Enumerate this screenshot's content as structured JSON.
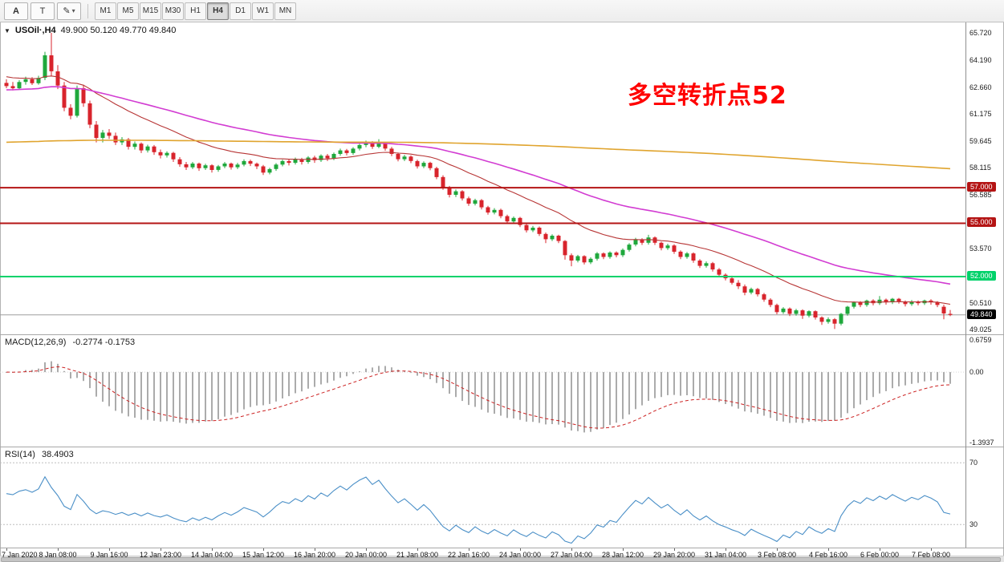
{
  "toolbar": {
    "button_a": "A",
    "button_t": "T",
    "timeframes": [
      "M1",
      "M5",
      "M15",
      "M30",
      "H1",
      "H4",
      "D1",
      "W1",
      "MN"
    ],
    "active_timeframe": "H4"
  },
  "icons": {
    "symbol_dropdown": "▼",
    "chevron_down": "▾",
    "draw": "✎"
  },
  "chart_header": {
    "symbol": "USOil·,H4",
    "ohlc": "49.900 50.120 49.770 49.840"
  },
  "annotation": {
    "text": "多空转折点52",
    "color": "#ff0000"
  },
  "macd_header": {
    "label": "MACD(12,26,9)",
    "values": "-0.2774 -0.1753"
  },
  "rsi_header": {
    "label": "RSI(14)",
    "value": "38.4903"
  },
  "chart_data": {
    "type": "candlestick+indicators",
    "symbol": "USOil",
    "timeframe": "H4",
    "colors": {
      "up": "#1fa83c",
      "down": "#d8242c"
    },
    "main": {
      "ylim": [
        48.75,
        66.3
      ],
      "ticks": [
        {
          "v": 65.72,
          "label": "65.720"
        },
        {
          "v": 64.19,
          "label": "64.190"
        },
        {
          "v": 62.66,
          "label": "62.660"
        },
        {
          "v": 61.175,
          "label": "61.175"
        },
        {
          "v": 59.645,
          "label": "59.645"
        },
        {
          "v": 58.115,
          "label": "58.115"
        },
        {
          "v": 56.585,
          "label": "56.585"
        },
        {
          "v": 53.57,
          "label": "53.570"
        },
        {
          "v": 50.51,
          "label": "50.510"
        },
        {
          "v": 49.025,
          "label": "49.025"
        }
      ]
    },
    "hlines": [
      {
        "value": 57.0,
        "label": "57.000",
        "color": "#b41414",
        "text_color": "#ffffff",
        "width": 2
      },
      {
        "value": 55.0,
        "label": "55.000",
        "color": "#b41414",
        "text_color": "#ffffff",
        "width": 2
      },
      {
        "value": 52.0,
        "label": "52.000",
        "color": "#00d26a",
        "text_color": "#ffffff",
        "width": 2
      }
    ],
    "current_price": {
      "value": 49.84,
      "label": "49.840",
      "color": "#000000",
      "text_color": "#ffffff"
    },
    "moving_averages": [
      {
        "name": "ma-fast",
        "period": 21,
        "seed": 63.3,
        "color": "#b73535",
        "width": 1.1
      },
      {
        "name": "ma-mid",
        "period": 55,
        "seed": 62.5,
        "color": "#d23cd2",
        "width": 1.6
      },
      {
        "name": "ma-slow",
        "period": 700,
        "seed": 59.55,
        "color": "#e0a42e",
        "width": 1.6
      }
    ],
    "macd": {
      "params": [
        12,
        26,
        9
      ],
      "ylim": [
        -1.45,
        0.72
      ],
      "axis_labels": [
        {
          "v": 0.6759,
          "label": "0.6759"
        },
        {
          "v": 0,
          "label": "0.00"
        },
        {
          "v": -1.3937,
          "label": "-1.3937"
        }
      ],
      "histogram_color": "#ababab",
      "signal_color": "#cc2222"
    },
    "rsi": {
      "period": 14,
      "ylim": [
        15,
        80
      ],
      "levels": [
        {
          "v": 70,
          "label": "70"
        },
        {
          "v": 30,
          "label": "30"
        }
      ],
      "color": "#4a8fc7"
    },
    "time_labels": [
      {
        "i": 0,
        "label": "7 Jan 2020"
      },
      {
        "i": 8,
        "label": "8 Jan 08:00"
      },
      {
        "i": 16,
        "label": "9 Jan 16:00"
      },
      {
        "i": 24,
        "label": "12 Jan 23:00"
      },
      {
        "i": 32,
        "label": "14 Jan 04:00"
      },
      {
        "i": 40,
        "label": "15 Jan 12:00"
      },
      {
        "i": 48,
        "label": "16 Jan 20:00"
      },
      {
        "i": 56,
        "label": "20 Jan 00:00"
      },
      {
        "i": 64,
        "label": "21 Jan 08:00"
      },
      {
        "i": 72,
        "label": "22 Jan 16:00"
      },
      {
        "i": 80,
        "label": "24 Jan 00:00"
      },
      {
        "i": 88,
        "label": "27 Jan 04:00"
      },
      {
        "i": 96,
        "label": "28 Jan 12:00"
      },
      {
        "i": 104,
        "label": "29 Jan 20:00"
      },
      {
        "i": 112,
        "label": "31 Jan 04:00"
      },
      {
        "i": 120,
        "label": "3 Feb 08:00"
      },
      {
        "i": 128,
        "label": "4 Feb 16:00"
      },
      {
        "i": 136,
        "label": "6 Feb 00:00"
      },
      {
        "i": 144,
        "label": "7 Feb 08:00"
      }
    ],
    "candles": [
      [
        62.9,
        63.1,
        62.6,
        62.72
      ],
      [
        62.72,
        62.95,
        62.48,
        62.6
      ],
      [
        62.6,
        63.05,
        62.55,
        62.95
      ],
      [
        62.95,
        63.25,
        62.8,
        63.1
      ],
      [
        63.1,
        63.22,
        62.78,
        62.88
      ],
      [
        62.88,
        63.3,
        62.8,
        63.18
      ],
      [
        63.18,
        64.65,
        63.05,
        64.45
      ],
      [
        64.45,
        65.72,
        63.3,
        63.55
      ],
      [
        63.55,
        63.9,
        62.55,
        62.75
      ],
      [
        62.75,
        62.95,
        61.3,
        61.5
      ],
      [
        61.5,
        61.7,
        60.85,
        61.05
      ],
      [
        61.05,
        62.75,
        60.95,
        62.6
      ],
      [
        62.6,
        62.8,
        61.55,
        61.75
      ],
      [
        61.75,
        61.9,
        60.35,
        60.55
      ],
      [
        60.55,
        60.75,
        59.55,
        59.8
      ],
      [
        59.8,
        60.25,
        59.55,
        60.1
      ],
      [
        60.1,
        60.3,
        59.75,
        59.92
      ],
      [
        59.92,
        60.1,
        59.4,
        59.55
      ],
      [
        59.55,
        59.85,
        59.4,
        59.72
      ],
      [
        59.72,
        59.8,
        59.15,
        59.3
      ],
      [
        59.3,
        59.6,
        59.15,
        59.48
      ],
      [
        59.48,
        59.55,
        58.95,
        59.1
      ],
      [
        59.1,
        59.42,
        58.98,
        59.32
      ],
      [
        59.32,
        59.4,
        58.85,
        59.0
      ],
      [
        59.0,
        59.15,
        58.65,
        58.82
      ],
      [
        58.82,
        59.05,
        58.7,
        58.96
      ],
      [
        58.96,
        59.02,
        58.45,
        58.6
      ],
      [
        58.6,
        58.72,
        58.18,
        58.32
      ],
      [
        58.32,
        58.45,
        58.0,
        58.15
      ],
      [
        58.15,
        58.45,
        58.05,
        58.36
      ],
      [
        58.36,
        58.42,
        57.95,
        58.1
      ],
      [
        58.1,
        58.35,
        58.0,
        58.26
      ],
      [
        58.26,
        58.32,
        57.85,
        58.0
      ],
      [
        58.0,
        58.28,
        57.9,
        58.2
      ],
      [
        58.2,
        58.45,
        58.1,
        58.36
      ],
      [
        58.36,
        58.42,
        58.02,
        58.15
      ],
      [
        58.15,
        58.4,
        58.05,
        58.3
      ],
      [
        58.3,
        58.6,
        58.2,
        58.5
      ],
      [
        58.5,
        58.58,
        58.22,
        58.35
      ],
      [
        58.35,
        58.42,
        58.05,
        58.2
      ],
      [
        58.2,
        58.28,
        57.72,
        57.85
      ],
      [
        57.85,
        58.12,
        57.75,
        58.05
      ],
      [
        58.05,
        58.38,
        57.95,
        58.3
      ],
      [
        58.3,
        58.58,
        58.2,
        58.5
      ],
      [
        58.5,
        58.6,
        58.25,
        58.4
      ],
      [
        58.4,
        58.7,
        58.3,
        58.6
      ],
      [
        58.6,
        58.68,
        58.3,
        58.45
      ],
      [
        58.45,
        58.78,
        58.35,
        58.7
      ],
      [
        58.7,
        58.8,
        58.4,
        58.55
      ],
      [
        58.55,
        58.88,
        58.45,
        58.8
      ],
      [
        58.8,
        58.9,
        58.5,
        58.65
      ],
      [
        58.65,
        58.98,
        58.55,
        58.9
      ],
      [
        58.9,
        59.2,
        58.8,
        59.1
      ],
      [
        59.1,
        59.18,
        58.82,
        58.95
      ],
      [
        58.95,
        59.28,
        58.85,
        59.2
      ],
      [
        59.2,
        59.48,
        59.1,
        59.4
      ],
      [
        59.4,
        59.65,
        59.28,
        59.55
      ],
      [
        59.55,
        59.62,
        59.18,
        59.3
      ],
      [
        59.3,
        59.73,
        59.22,
        59.5
      ],
      [
        59.5,
        59.58,
        59.08,
        59.2
      ],
      [
        59.2,
        59.3,
        58.78,
        58.9
      ],
      [
        58.9,
        58.98,
        58.48,
        58.6
      ],
      [
        58.6,
        58.85,
        58.5,
        58.75
      ],
      [
        58.75,
        58.82,
        58.38,
        58.5
      ],
      [
        58.5,
        58.58,
        58.08,
        58.2
      ],
      [
        58.2,
        58.48,
        58.1,
        58.4
      ],
      [
        58.4,
        58.46,
        57.98,
        58.1
      ],
      [
        58.1,
        58.18,
        57.48,
        57.6
      ],
      [
        57.6,
        57.7,
        56.88,
        57.0
      ],
      [
        57.0,
        57.1,
        56.45,
        56.6
      ],
      [
        56.6,
        56.9,
        56.48,
        56.8
      ],
      [
        56.8,
        56.86,
        56.28,
        56.4
      ],
      [
        56.4,
        56.5,
        55.98,
        56.1
      ],
      [
        56.1,
        56.38,
        56.0,
        56.3
      ],
      [
        56.3,
        56.36,
        55.78,
        55.9
      ],
      [
        55.9,
        55.98,
        55.48,
        55.6
      ],
      [
        55.6,
        55.85,
        55.5,
        55.75
      ],
      [
        55.75,
        55.82,
        55.28,
        55.4
      ],
      [
        55.4,
        55.48,
        54.98,
        55.1
      ],
      [
        55.1,
        55.38,
        55.0,
        55.3
      ],
      [
        55.3,
        55.36,
        54.78,
        54.9
      ],
      [
        54.9,
        54.98,
        54.48,
        54.6
      ],
      [
        54.6,
        54.85,
        54.5,
        54.75
      ],
      [
        54.75,
        54.82,
        54.28,
        54.4
      ],
      [
        54.4,
        54.48,
        53.88,
        54.1
      ],
      [
        54.1,
        54.38,
        54.0,
        54.3
      ],
      [
        54.3,
        54.36,
        53.88,
        54.0
      ],
      [
        54.0,
        54.05,
        52.95,
        53.2
      ],
      [
        53.2,
        53.3,
        52.58,
        52.9
      ],
      [
        52.9,
        53.22,
        52.8,
        53.15
      ],
      [
        53.15,
        53.2,
        52.68,
        52.8
      ],
      [
        52.8,
        53.08,
        52.7,
        53.0
      ],
      [
        53.0,
        53.38,
        52.9,
        53.3
      ],
      [
        53.3,
        53.36,
        52.98,
        53.1
      ],
      [
        53.1,
        53.42,
        53.0,
        53.35
      ],
      [
        53.35,
        53.42,
        53.08,
        53.2
      ],
      [
        53.2,
        53.58,
        53.1,
        53.5
      ],
      [
        53.5,
        53.88,
        53.4,
        53.8
      ],
      [
        53.8,
        54.18,
        53.7,
        54.1
      ],
      [
        54.1,
        54.16,
        53.78,
        53.9
      ],
      [
        53.9,
        54.35,
        53.8,
        54.2
      ],
      [
        54.2,
        54.26,
        53.78,
        53.9
      ],
      [
        53.9,
        53.96,
        53.48,
        53.6
      ],
      [
        53.6,
        53.85,
        53.5,
        53.75
      ],
      [
        53.75,
        53.82,
        53.28,
        53.4
      ],
      [
        53.4,
        53.48,
        52.98,
        53.1
      ],
      [
        53.1,
        53.38,
        53.0,
        53.3
      ],
      [
        53.3,
        53.36,
        52.78,
        52.9
      ],
      [
        52.9,
        52.98,
        52.48,
        52.6
      ],
      [
        52.6,
        52.85,
        52.5,
        52.75
      ],
      [
        52.75,
        52.82,
        52.28,
        52.4
      ],
      [
        52.4,
        52.48,
        51.98,
        52.1
      ],
      [
        52.1,
        52.18,
        51.78,
        51.9
      ],
      [
        51.9,
        52.05,
        51.55,
        51.65
      ],
      [
        51.65,
        51.8,
        51.3,
        51.45
      ],
      [
        51.45,
        51.55,
        50.95,
        51.1
      ],
      [
        51.1,
        51.38,
        51.0,
        51.3
      ],
      [
        51.3,
        51.36,
        50.88,
        51.0
      ],
      [
        51.0,
        51.08,
        50.58,
        50.7
      ],
      [
        50.7,
        50.78,
        50.28,
        50.4
      ],
      [
        50.4,
        50.48,
        49.88,
        50.0
      ],
      [
        50.0,
        50.28,
        49.9,
        50.2
      ],
      [
        50.2,
        50.26,
        49.78,
        49.9
      ],
      [
        49.9,
        50.18,
        49.8,
        50.1
      ],
      [
        50.1,
        50.16,
        49.62,
        49.8
      ],
      [
        49.8,
        50.1,
        49.7,
        50.05
      ],
      [
        50.05,
        50.1,
        49.58,
        49.7
      ],
      [
        49.7,
        49.76,
        49.28,
        49.45
      ],
      [
        49.45,
        49.7,
        49.35,
        49.6
      ],
      [
        49.6,
        49.66,
        49.05,
        49.35
      ],
      [
        49.35,
        49.95,
        49.25,
        49.9
      ],
      [
        49.9,
        50.35,
        49.8,
        50.3
      ],
      [
        50.3,
        50.6,
        50.2,
        50.55
      ],
      [
        50.55,
        50.62,
        50.28,
        50.4
      ],
      [
        50.4,
        50.7,
        50.3,
        50.65
      ],
      [
        50.65,
        50.72,
        50.38,
        50.5
      ],
      [
        50.5,
        50.9,
        50.4,
        50.7
      ],
      [
        50.7,
        50.76,
        50.42,
        50.55
      ],
      [
        50.55,
        50.8,
        50.45,
        50.75
      ],
      [
        50.75,
        50.8,
        50.48,
        50.6
      ],
      [
        50.6,
        50.66,
        50.32,
        50.45
      ],
      [
        50.45,
        50.68,
        50.35,
        50.6
      ],
      [
        50.6,
        50.66,
        50.38,
        50.5
      ],
      [
        50.5,
        50.7,
        50.4,
        50.65
      ],
      [
        50.65,
        50.72,
        50.42,
        50.55
      ],
      [
        50.55,
        50.62,
        50.28,
        50.4
      ],
      [
        50.3,
        50.42,
        49.6,
        49.92
      ],
      [
        49.9,
        50.12,
        49.77,
        49.84
      ]
    ]
  }
}
